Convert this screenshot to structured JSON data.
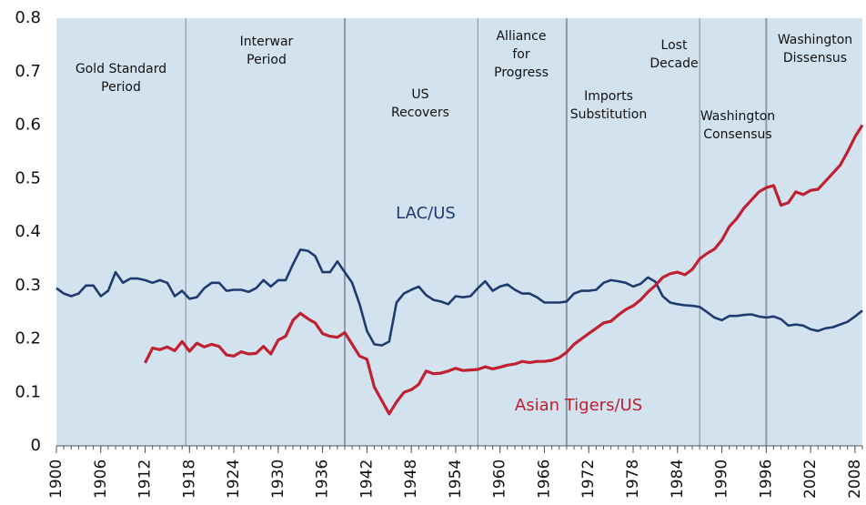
{
  "chart_data": {
    "type": "line",
    "x": [
      1900,
      1901,
      1902,
      1903,
      1904,
      1905,
      1906,
      1907,
      1908,
      1909,
      1910,
      1911,
      1912,
      1913,
      1914,
      1915,
      1916,
      1917,
      1918,
      1919,
      1920,
      1921,
      1922,
      1923,
      1924,
      1925,
      1926,
      1927,
      1928,
      1929,
      1930,
      1931,
      1932,
      1933,
      1934,
      1935,
      1936,
      1937,
      1938,
      1939,
      1940,
      1941,
      1942,
      1943,
      1944,
      1945,
      1946,
      1947,
      1948,
      1949,
      1950,
      1951,
      1952,
      1953,
      1954,
      1955,
      1956,
      1957,
      1958,
      1959,
      1960,
      1961,
      1962,
      1963,
      1964,
      1965,
      1966,
      1967,
      1968,
      1969,
      1970,
      1971,
      1972,
      1973,
      1974,
      1975,
      1976,
      1977,
      1978,
      1979,
      1980,
      1981,
      1982,
      1983,
      1984,
      1985,
      1986,
      1987,
      1988,
      1989,
      1990,
      1991,
      1992,
      1993,
      1994,
      1995,
      1996,
      1997,
      1998,
      1999,
      2000,
      2001,
      2002,
      2003,
      2004,
      2005,
      2006,
      2007,
      2008,
      2009
    ],
    "series": [
      {
        "name": "LAC/US",
        "color": "#1f3a6e",
        "values": [
          0.295,
          0.285,
          0.28,
          0.285,
          0.3,
          0.3,
          0.28,
          0.29,
          0.325,
          0.305,
          0.313,
          0.313,
          0.31,
          0.305,
          0.31,
          0.305,
          0.28,
          0.29,
          0.275,
          0.278,
          0.295,
          0.305,
          0.305,
          0.29,
          0.292,
          0.292,
          0.288,
          0.295,
          0.31,
          0.298,
          0.31,
          0.31,
          0.34,
          0.367,
          0.365,
          0.355,
          0.325,
          0.325,
          0.345,
          0.325,
          0.305,
          0.265,
          0.215,
          0.19,
          0.188,
          0.195,
          0.268,
          0.285,
          0.292,
          0.298,
          0.282,
          0.273,
          0.27,
          0.265,
          0.28,
          0.278,
          0.28,
          0.295,
          0.308,
          0.29,
          0.298,
          0.302,
          0.292,
          0.285,
          0.285,
          0.278,
          0.268,
          0.268,
          0.268,
          0.27,
          0.285,
          0.29,
          0.29,
          0.292,
          0.305,
          0.31,
          0.308,
          0.305,
          0.298,
          0.303,
          0.315,
          0.307,
          0.28,
          0.268,
          0.265,
          0.263,
          0.262,
          0.26,
          0.25,
          0.24,
          0.235,
          0.243,
          0.243,
          0.245,
          0.246,
          0.242,
          0.24,
          0.242,
          0.237,
          0.225,
          0.227,
          0.225,
          0.218,
          0.215,
          0.22,
          0.222,
          0.227,
          0.232,
          0.242,
          0.253
        ]
      },
      {
        "name": "Asian Tigers/US",
        "color": "#c0202f",
        "values": [
          null,
          null,
          null,
          null,
          null,
          null,
          null,
          null,
          null,
          null,
          null,
          null,
          0.155,
          0.183,
          0.18,
          0.185,
          0.178,
          0.195,
          0.177,
          0.192,
          0.185,
          0.19,
          0.186,
          0.17,
          0.168,
          0.176,
          0.172,
          0.173,
          0.186,
          0.172,
          0.198,
          0.205,
          0.235,
          0.248,
          0.238,
          0.23,
          0.21,
          0.205,
          0.203,
          0.212,
          0.19,
          0.168,
          0.162,
          0.11,
          0.085,
          0.06,
          0.082,
          0.1,
          0.105,
          0.115,
          0.14,
          0.135,
          0.136,
          0.14,
          0.145,
          0.141,
          0.142,
          0.143,
          0.148,
          0.144,
          0.147,
          0.151,
          0.153,
          0.158,
          0.156,
          0.158,
          0.158,
          0.16,
          0.165,
          0.175,
          0.19,
          0.2,
          0.21,
          0.22,
          0.23,
          0.233,
          0.245,
          0.255,
          0.262,
          0.273,
          0.288,
          0.3,
          0.315,
          0.322,
          0.325,
          0.32,
          0.33,
          0.35,
          0.36,
          0.368,
          0.385,
          0.41,
          0.425,
          0.445,
          0.46,
          0.475,
          0.483,
          0.487,
          0.45,
          0.455,
          0.475,
          0.47,
          0.478,
          0.48,
          0.495,
          0.51,
          0.525,
          0.55,
          0.578,
          0.6
        ]
      }
    ],
    "xlim": [
      1900,
      2009
    ],
    "xticks": [
      1900,
      1906,
      1912,
      1918,
      1924,
      1930,
      1936,
      1942,
      1948,
      1954,
      1960,
      1966,
      1972,
      1978,
      1984,
      1990,
      1996,
      2002,
      2008
    ],
    "ylim": [
      0,
      0.8
    ],
    "yticks": [
      0,
      0.1,
      0.2,
      0.3,
      0.4,
      0.5,
      0.6,
      0.7,
      0.8
    ],
    "dividers": [
      1917.5,
      1939,
      1957,
      1969,
      1987,
      1996
    ],
    "annotations": [
      {
        "lines": [
          "Gold Standard",
          "Period"
        ]
      },
      {
        "lines": [
          "Interwar",
          "Period"
        ]
      },
      {
        "lines": [
          "US",
          "Recovers"
        ]
      },
      {
        "lines": [
          "Alliance",
          "for",
          "Progress"
        ]
      },
      {
        "lines": [
          "Imports",
          "Substitution"
        ]
      },
      {
        "lines": [
          "Lost",
          "Decade"
        ]
      },
      {
        "lines": [
          "Washington",
          "Consensus"
        ]
      },
      {
        "lines": [
          "Washington",
          "Dissensus"
        ]
      }
    ]
  }
}
